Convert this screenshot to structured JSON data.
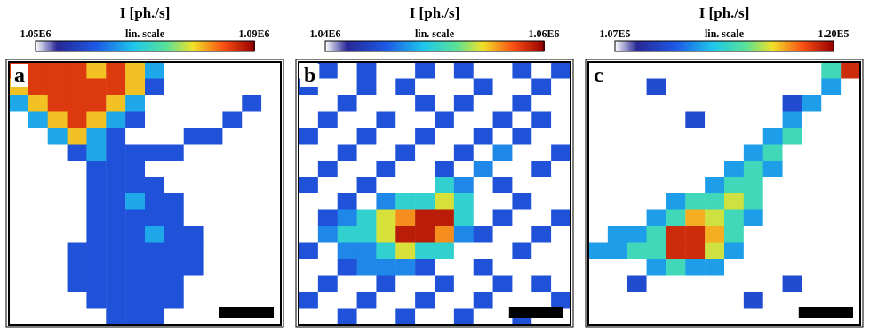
{
  "chart_data": [
    {
      "type": "heatmap",
      "panel": "a",
      "tick_labels": false,
      "colorbar": {
        "title": "I [ph./s]",
        "note": "lin. scale",
        "range": [
          1050000.0,
          1090000.0
        ],
        "ticks": [
          {
            "value": 1050000.0,
            "label": "1.05E6"
          },
          {
            "value": 1090000.0,
            "label": "1.09E6"
          }
        ]
      },
      "cells": [
        [
          1086000.0,
          1086000.0,
          1086000.0,
          1086000.0,
          1080000.0,
          1086000.0,
          1080000.0,
          1066000.0,
          1050000.0,
          1050000.0,
          1050000.0,
          1050000.0,
          1050000.0,
          1050000.0
        ],
        [
          1080000.0,
          1086000.0,
          1086000.0,
          1086000.0,
          1086000.0,
          1086000.0,
          1080000.0,
          1060000.0,
          1050000.0,
          1050000.0,
          1050000.0,
          1050000.0,
          1050000.0,
          1050000.0
        ],
        [
          1066000.0,
          1080000.0,
          1086000.0,
          1086000.0,
          1086000.0,
          1080000.0,
          1066000.0,
          1050000.0,
          1050000.0,
          1050000.0,
          1050000.0,
          1050000.0,
          1060000.0,
          1050000.0
        ],
        [
          1050000.0,
          1066000.0,
          1080000.0,
          1086000.0,
          1080000.0,
          1066000.0,
          1060000.0,
          1050000.0,
          1050000.0,
          1050000.0,
          1050000.0,
          1060000.0,
          1050000.0,
          1050000.0
        ],
        [
          1050000.0,
          1050000.0,
          1066000.0,
          1080000.0,
          1066000.0,
          1060000.0,
          1050000.0,
          1050000.0,
          1050000.0,
          1060000.0,
          1060000.0,
          1050000.0,
          1050000.0,
          1050000.0
        ],
        [
          1050000.0,
          1050000.0,
          1050000.0,
          1060000.0,
          1066000.0,
          1060000.0,
          1060000.0,
          1060000.0,
          1060000.0,
          1050000.0,
          1050000.0,
          1050000.0,
          1050000.0,
          1050000.0
        ],
        [
          1050000.0,
          1050000.0,
          1050000.0,
          1050000.0,
          1060000.0,
          1060000.0,
          1060000.0,
          1050000.0,
          1050000.0,
          1050000.0,
          1050000.0,
          1050000.0,
          1050000.0,
          1050000.0
        ],
        [
          1050000.0,
          1050000.0,
          1050000.0,
          1050000.0,
          1060000.0,
          1060000.0,
          1060000.0,
          1060000.0,
          1050000.0,
          1050000.0,
          1050000.0,
          1050000.0,
          1050000.0,
          1050000.0
        ],
        [
          1050000.0,
          1050000.0,
          1050000.0,
          1050000.0,
          1060000.0,
          1060000.0,
          1066000.0,
          1060000.0,
          1060000.0,
          1050000.0,
          1050000.0,
          1050000.0,
          1050000.0,
          1050000.0
        ],
        [
          1050000.0,
          1050000.0,
          1050000.0,
          1050000.0,
          1060000.0,
          1060000.0,
          1060000.0,
          1060000.0,
          1060000.0,
          1050000.0,
          1050000.0,
          1050000.0,
          1050000.0,
          1050000.0
        ],
        [
          1050000.0,
          1050000.0,
          1050000.0,
          1050000.0,
          1060000.0,
          1060000.0,
          1060000.0,
          1066000.0,
          1060000.0,
          1060000.0,
          1050000.0,
          1050000.0,
          1050000.0,
          1050000.0
        ],
        [
          1050000.0,
          1050000.0,
          1050000.0,
          1060000.0,
          1060000.0,
          1060000.0,
          1060000.0,
          1060000.0,
          1060000.0,
          1060000.0,
          1050000.0,
          1050000.0,
          1050000.0,
          1050000.0
        ],
        [
          1050000.0,
          1050000.0,
          1050000.0,
          1060000.0,
          1060000.0,
          1060000.0,
          1060000.0,
          1060000.0,
          1060000.0,
          1060000.0,
          1050000.0,
          1050000.0,
          1050000.0,
          1050000.0
        ],
        [
          1050000.0,
          1050000.0,
          1050000.0,
          1060000.0,
          1060000.0,
          1060000.0,
          1060000.0,
          1060000.0,
          1060000.0,
          1050000.0,
          1050000.0,
          1050000.0,
          1050000.0,
          1050000.0
        ],
        [
          1050000.0,
          1050000.0,
          1050000.0,
          1050000.0,
          1060000.0,
          1060000.0,
          1060000.0,
          1060000.0,
          1060000.0,
          1050000.0,
          1050000.0,
          1050000.0,
          1050000.0,
          1050000.0
        ],
        [
          1050000.0,
          1050000.0,
          1050000.0,
          1050000.0,
          1050000.0,
          1060000.0,
          1060000.0,
          1060000.0,
          1050000.0,
          1050000.0,
          1050000.0,
          1050000.0,
          1050000.0,
          1050000.0
        ]
      ]
    },
    {
      "type": "heatmap",
      "panel": "b",
      "tick_labels": false,
      "colorbar": {
        "title": "I [ph./s]",
        "note": "lin. scale",
        "range": [
          1040000.0,
          1060000.0
        ],
        "ticks": [
          {
            "value": 1040000.0,
            "label": "1.04E6"
          },
          {
            "value": 1060000.0,
            "label": "1.06E6"
          }
        ]
      },
      "cells": [
        [
          1040000.0,
          1045000.0,
          1040000.0,
          1045000.0,
          1040000.0,
          1040000.0,
          1045000.0,
          1040000.0,
          1045000.0,
          1040000.0,
          1040000.0,
          1045000.0,
          1040000.0,
          1045000.0
        ],
        [
          1045000.0,
          1040000.0,
          1040000.0,
          1045000.0,
          1040000.0,
          1045000.0,
          1040000.0,
          1040000.0,
          1040000.0,
          1045000.0,
          1040000.0,
          1040000.0,
          1045000.0,
          1040000.0
        ],
        [
          1040000.0,
          1040000.0,
          1045000.0,
          1040000.0,
          1040000.0,
          1040000.0,
          1045000.0,
          1040000.0,
          1045000.0,
          1040000.0,
          1040000.0,
          1045000.0,
          1040000.0,
          1040000.0
        ],
        [
          1040000.0,
          1045000.0,
          1040000.0,
          1040000.0,
          1045000.0,
          1040000.0,
          1040000.0,
          1045000.0,
          1040000.0,
          1040000.0,
          1045000.0,
          1040000.0,
          1045000.0,
          1040000.0
        ],
        [
          1045000.0,
          1040000.0,
          1040000.0,
          1045000.0,
          1040000.0,
          1040000.0,
          1045000.0,
          1040000.0,
          1040000.0,
          1045000.0,
          1040000.0,
          1045000.0,
          1040000.0,
          1040000.0
        ],
        [
          1040000.0,
          1040000.0,
          1045000.0,
          1040000.0,
          1040000.0,
          1045000.0,
          1040000.0,
          1040000.0,
          1045000.0,
          1040000.0,
          1047000.0,
          1040000.0,
          1040000.0,
          1045000.0
        ],
        [
          1040000.0,
          1045000.0,
          1040000.0,
          1040000.0,
          1045000.0,
          1040000.0,
          1040000.0,
          1045000.0,
          1040000.0,
          1047000.0,
          1040000.0,
          1040000.0,
          1045000.0,
          1040000.0
        ],
        [
          1045000.0,
          1040000.0,
          1040000.0,
          1045000.0,
          1040000.0,
          1040000.0,
          1040000.0,
          1050000.0,
          1047000.0,
          1040000.0,
          1045000.0,
          1040000.0,
          1040000.0,
          1040000.0
        ],
        [
          1040000.0,
          1040000.0,
          1045000.0,
          1040000.0,
          1047000.0,
          1050000.0,
          1050000.0,
          1054000.0,
          1050000.0,
          1040000.0,
          1040000.0,
          1045000.0,
          1040000.0,
          1040000.0
        ],
        [
          1040000.0,
          1045000.0,
          1047000.0,
          1050000.0,
          1054000.0,
          1056000.0,
          1059000.0,
          1059000.0,
          1050000.0,
          1040000.0,
          1045000.0,
          1040000.0,
          1040000.0,
          1045000.0
        ],
        [
          1040000.0,
          1047000.0,
          1050000.0,
          1050000.0,
          1054000.0,
          1059000.0,
          1059000.0,
          1056000.0,
          1047000.0,
          1045000.0,
          1040000.0,
          1040000.0,
          1045000.0,
          1040000.0
        ],
        [
          1045000.0,
          1040000.0,
          1047000.0,
          1047000.0,
          1050000.0,
          1054000.0,
          1050000.0,
          1050000.0,
          1040000.0,
          1040000.0,
          1040000.0,
          1045000.0,
          1040000.0,
          1040000.0
        ],
        [
          1040000.0,
          1040000.0,
          1045000.0,
          1047000.0,
          1047000.0,
          1047000.0,
          1045000.0,
          1040000.0,
          1040000.0,
          1045000.0,
          1040000.0,
          1040000.0,
          1040000.0,
          1040000.0
        ],
        [
          1040000.0,
          1045000.0,
          1040000.0,
          1040000.0,
          1045000.0,
          1040000.0,
          1040000.0,
          1045000.0,
          1040000.0,
          1040000.0,
          1045000.0,
          1040000.0,
          1045000.0,
          1040000.0
        ],
        [
          1045000.0,
          1040000.0,
          1040000.0,
          1045000.0,
          1040000.0,
          1040000.0,
          1045000.0,
          1040000.0,
          1040000.0,
          1045000.0,
          1040000.0,
          1040000.0,
          1040000.0,
          1045000.0
        ],
        [
          1040000.0,
          1040000.0,
          1045000.0,
          1040000.0,
          1040000.0,
          1045000.0,
          1040000.0,
          1040000.0,
          1045000.0,
          1040000.0,
          1040000.0,
          1045000.0,
          1040000.0,
          1040000.0
        ]
      ]
    },
    {
      "type": "heatmap",
      "panel": "c",
      "tick_labels": false,
      "colorbar": {
        "title": "I [ph./s]",
        "note": "lin. scale",
        "range": [
          107000.0,
          120000.0
        ],
        "ticks": [
          {
            "value": 107000.0,
            "label": "1.07E5"
          },
          {
            "value": 120000.0,
            "label": "1.20E5"
          }
        ]
      },
      "cells": [
        [
          107000.0,
          107000.0,
          107000.0,
          107000.0,
          107000.0,
          107000.0,
          107000.0,
          107000.0,
          107000.0,
          107000.0,
          107000.0,
          107000.0,
          114000.0,
          119000.0
        ],
        [
          107000.0,
          107000.0,
          107000.0,
          110000.0,
          107000.0,
          107000.0,
          107000.0,
          107000.0,
          107000.0,
          107000.0,
          107000.0,
          107000.0,
          112000.0,
          107000.0
        ],
        [
          107000.0,
          107000.0,
          107000.0,
          107000.0,
          107000.0,
          107000.0,
          107000.0,
          107000.0,
          107000.0,
          107000.0,
          110000.0,
          112000.0,
          107000.0,
          107000.0
        ],
        [
          107000.0,
          107000.0,
          107000.0,
          107000.0,
          107000.0,
          110000.0,
          107000.0,
          107000.0,
          107000.0,
          107000.0,
          112000.0,
          107000.0,
          107000.0,
          107000.0
        ],
        [
          107000.0,
          107000.0,
          107000.0,
          107000.0,
          107000.0,
          107000.0,
          107000.0,
          107000.0,
          107000.0,
          112000.0,
          114000.0,
          107000.0,
          107000.0,
          107000.0
        ],
        [
          107000.0,
          107000.0,
          107000.0,
          107000.0,
          107000.0,
          107000.0,
          107000.0,
          107000.0,
          112000.0,
          114000.0,
          107000.0,
          107000.0,
          107000.0,
          107000.0
        ],
        [
          107000.0,
          107000.0,
          107000.0,
          107000.0,
          107000.0,
          107000.0,
          107000.0,
          112000.0,
          114000.0,
          112000.0,
          107000.0,
          107000.0,
          107000.0,
          107000.0
        ],
        [
          107000.0,
          107000.0,
          107000.0,
          107000.0,
          107000.0,
          107000.0,
          112000.0,
          114000.0,
          114000.0,
          107000.0,
          107000.0,
          107000.0,
          107000.0,
          107000.0
        ],
        [
          107000.0,
          107000.0,
          107000.0,
          107000.0,
          112000.0,
          114000.0,
          114000.0,
          116000.0,
          114000.0,
          107000.0,
          107000.0,
          107000.0,
          107000.0,
          107000.0
        ],
        [
          107000.0,
          107000.0,
          107000.0,
          112000.0,
          114000.0,
          117000.0,
          116000.0,
          114000.0,
          112000.0,
          107000.0,
          107000.0,
          107000.0,
          107000.0,
          107000.0
        ],
        [
          107000.0,
          112000.0,
          112000.0,
          114000.0,
          119000.0,
          119000.0,
          117000.0,
          114000.0,
          107000.0,
          107000.0,
          107000.0,
          107000.0,
          107000.0,
          107000.0
        ],
        [
          112000.0,
          112000.0,
          114000.0,
          114000.0,
          119000.0,
          119000.0,
          116000.0,
          112000.0,
          107000.0,
          107000.0,
          107000.0,
          107000.0,
          107000.0,
          107000.0
        ],
        [
          107000.0,
          107000.0,
          107000.0,
          112000.0,
          114000.0,
          112000.0,
          112000.0,
          107000.0,
          107000.0,
          107000.0,
          107000.0,
          107000.0,
          107000.0,
          107000.0
        ],
        [
          107000.0,
          107000.0,
          110000.0,
          107000.0,
          107000.0,
          107000.0,
          107000.0,
          107000.0,
          107000.0,
          107000.0,
          110000.0,
          107000.0,
          107000.0,
          107000.0
        ],
        [
          107000.0,
          107000.0,
          107000.0,
          107000.0,
          107000.0,
          107000.0,
          107000.0,
          107000.0,
          110000.0,
          107000.0,
          107000.0,
          107000.0,
          107000.0,
          107000.0
        ],
        [
          107000.0,
          107000.0,
          107000.0,
          107000.0,
          107000.0,
          107000.0,
          107000.0,
          107000.0,
          107000.0,
          107000.0,
          107000.0,
          107000.0,
          107000.0,
          107000.0
        ]
      ]
    }
  ]
}
